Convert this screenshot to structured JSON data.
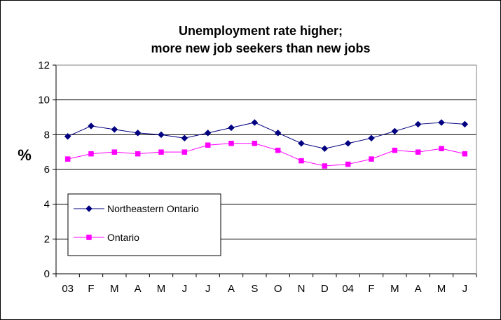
{
  "chart_data": {
    "type": "line",
    "title_lines": [
      "Unemployment rate higher;",
      "more new job seekers than new jobs"
    ],
    "xlabel": "",
    "ylabel": "%",
    "categories": [
      "03",
      "F",
      "M",
      "A",
      "M",
      "J",
      "J",
      "A",
      "S",
      "O",
      "N",
      "D",
      "04",
      "F",
      "M",
      "A",
      "M",
      "J"
    ],
    "ylim": [
      0,
      12
    ],
    "yticks": [
      0,
      2,
      4,
      6,
      8,
      10,
      12
    ],
    "grid": "horizontal",
    "legend_position": "bottom-left",
    "series": [
      {
        "name": "Northeastern Ontario",
        "color": "#000080",
        "marker": "diamond",
        "values": [
          7.9,
          8.5,
          8.3,
          8.1,
          8.0,
          7.8,
          8.1,
          8.4,
          8.7,
          8.1,
          7.5,
          7.2,
          7.5,
          7.8,
          8.2,
          8.6,
          8.7,
          8.6
        ]
      },
      {
        "name": "Ontario",
        "color": "#ff00ff",
        "marker": "square",
        "values": [
          6.6,
          6.9,
          7.0,
          6.9,
          7.0,
          7.0,
          7.4,
          7.5,
          7.5,
          7.1,
          6.5,
          6.2,
          6.3,
          6.6,
          7.1,
          7.0,
          7.2,
          6.9
        ]
      }
    ]
  }
}
